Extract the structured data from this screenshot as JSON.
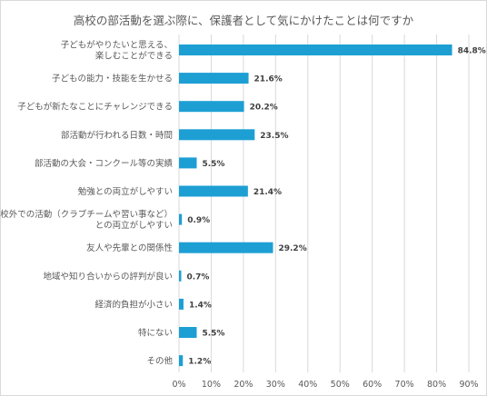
{
  "chart_data": {
    "type": "bar",
    "orientation": "horizontal",
    "title": "高校の部活動を選ぶ際に、保護者として気にかけたことは何ですか",
    "categories": [
      [
        "子どもがやりたいと思える、",
        "楽しむことができる"
      ],
      [
        "子どもの能力・技能を生かせる"
      ],
      [
        "子どもが新たなことにチャレンジできる"
      ],
      [
        "部活動が行われる日数・時間"
      ],
      [
        "部活動の大会・コンクール等の実績"
      ],
      [
        "勉強との両立がしやすい"
      ],
      [
        "学校外での活動（クラブチームや習い事など）",
        "との両立がしやすい"
      ],
      [
        "友人や先輩との関係性"
      ],
      [
        "地域や知り合いからの評判が良い"
      ],
      [
        "経済的負担が小さい"
      ],
      [
        "特にない"
      ],
      [
        "その他"
      ]
    ],
    "values": [
      84.8,
      21.6,
      20.2,
      23.5,
      5.5,
      21.4,
      0.9,
      29.2,
      0.7,
      1.4,
      5.5,
      1.2
    ],
    "value_labels": [
      "84.8%",
      "21.6%",
      "20.2%",
      "23.5%",
      "5.5%",
      "21.4%",
      "0.9%",
      "29.2%",
      "0.7%",
      "1.4%",
      "5.5%",
      "1.2%"
    ],
    "xlim": [
      0,
      90
    ],
    "x_ticks": [
      0,
      10,
      20,
      30,
      40,
      50,
      60,
      70,
      80,
      90
    ],
    "x_tick_labels": [
      "0%",
      "10%",
      "20%",
      "30%",
      "40%",
      "50%",
      "60%",
      "70%",
      "80%",
      "90%"
    ],
    "grid": true,
    "legend": "none",
    "bar_color": "#1d9fd4",
    "grid_color": "#d9d9d9",
    "label_color": "#595959",
    "value_label_color": "#404040"
  }
}
